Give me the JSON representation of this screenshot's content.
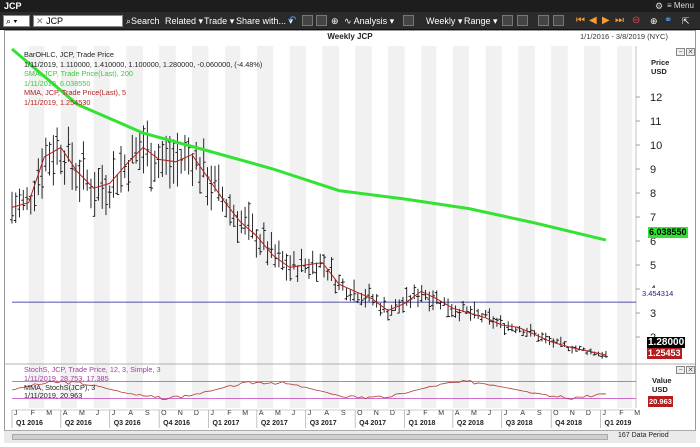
{
  "window": {
    "title": "JCP",
    "menu_label": "Menu"
  },
  "toolbar": {
    "symbol_value": "JCP",
    "search_label": "Search",
    "related_label": "Related",
    "trade_label": "Trade",
    "share_label": "Share with...",
    "analysis_label": "Analysis",
    "weekly_label": "Weekly",
    "range_label": "Range"
  },
  "chart": {
    "title": "Weekly JCP",
    "date_range": "1/1/2016 - 3/8/2019 (NYC)",
    "price_axis_title": "Price",
    "price_axis_unit": "USD",
    "lower_axis_title": "Value",
    "lower_axis_unit": "USD",
    "data_period": "167 Data Period"
  },
  "legend": {
    "ohlc_title": "BarOHLC, JCP, Trade Price",
    "ohlc_values": "1/11/2019, 1.110000, 1.410000, 1.100000, 1.280000, -0.060000, (-4.48%)",
    "sma_title": "SMA, JCP, Trade Price(Last), 200",
    "sma_values": "1/11/2019, 6.038550",
    "mma_title": "MMA, JCP, Trade Price(Last), 5",
    "mma_values": "1/11/2019, 1.254530"
  },
  "legend2": {
    "stoch_title": "StochS, JCP, Trade Price, 12, 3, Simple, 3",
    "stoch_values": "1/11/2019, 28.753, 17.385",
    "mma_title": "MMA, StochS(JCP), 3",
    "mma_values": "1/11/2019, 20.963"
  },
  "badges": {
    "sma": "6.038550",
    "hline": "3.454314",
    "last": "1.28000",
    "mma": "1.25453",
    "stoch": "20.963"
  },
  "colors": {
    "sma": "#33e233",
    "mma": "#b41e1e",
    "bars": "#111111",
    "hline": "#1a1a8c",
    "stoch": "#b33a3a",
    "stoch_band": "#c040c0",
    "accent_orange": "#ff9a2e"
  },
  "chart_data": {
    "type": "line",
    "title": "Weekly JCP",
    "price_ticks": [
      2,
      3,
      4,
      5,
      6,
      7,
      8,
      9,
      10,
      11,
      12
    ],
    "ylim": [
      1,
      13
    ],
    "months": [
      "J",
      "F",
      "M",
      "A",
      "M",
      "J",
      "J",
      "A",
      "S",
      "O",
      "N",
      "D",
      "J",
      "F",
      "M",
      "A",
      "M",
      "J",
      "J",
      "A",
      "S",
      "O",
      "N",
      "D",
      "J",
      "F",
      "M",
      "A",
      "M",
      "J",
      "J",
      "A",
      "S",
      "O",
      "N",
      "D",
      "J",
      "F",
      "M"
    ],
    "quarters": [
      "Q1 2016",
      "Q2 2016",
      "Q3 2016",
      "Q4 2016",
      "Q1 2017",
      "Q2 2017",
      "Q3 2017",
      "Q4 2017",
      "Q1 2018",
      "Q2 2018",
      "Q3 2018",
      "Q4 2018",
      "Q1 2019"
    ],
    "horizontal_line": 3.454314,
    "series": [
      {
        "name": "SMA 200",
        "x": [
          "2016-01-01",
          "2016-05-01",
          "2016-09-01",
          "2017-01-01",
          "2017-05-01",
          "2017-09-01",
          "2018-01-01",
          "2018-05-01",
          "2018-09-01",
          "2019-01-11"
        ],
        "values": [
          14.0,
          11.7,
          10.5,
          9.75,
          9.0,
          8.1,
          7.75,
          7.35,
          6.75,
          6.04
        ]
      },
      {
        "name": "MMA 5",
        "x": [
          "2016-01-01",
          "2016-02-01",
          "2016-03-01",
          "2016-04-01",
          "2016-05-01",
          "2016-06-01",
          "2016-07-01",
          "2016-08-01",
          "2016-09-01",
          "2016-10-01",
          "2016-11-01",
          "2016-12-01",
          "2017-01-01",
          "2017-02-01",
          "2017-03-01",
          "2017-04-01",
          "2017-05-01",
          "2017-06-01",
          "2017-07-01",
          "2017-08-01",
          "2017-09-01",
          "2017-10-01",
          "2017-11-01",
          "2017-12-01",
          "2018-01-01",
          "2018-02-01",
          "2018-03-01",
          "2018-04-01",
          "2018-05-01",
          "2018-06-01",
          "2018-07-01",
          "2018-08-01",
          "2018-09-01",
          "2018-10-01",
          "2018-11-01",
          "2018-12-01",
          "2019-01-11"
        ],
        "values": [
          7.4,
          7.6,
          9.5,
          9.9,
          8.9,
          8.2,
          8.4,
          9.2,
          9.9,
          9.4,
          9.3,
          9.6,
          8.6,
          7.6,
          6.8,
          6.2,
          5.4,
          4.9,
          5.0,
          5.1,
          4.2,
          3.9,
          3.6,
          3.1,
          3.4,
          3.9,
          3.6,
          3.2,
          3.0,
          2.8,
          2.5,
          2.4,
          2.1,
          1.8,
          1.6,
          1.45,
          1.25
        ]
      }
    ],
    "stoch": {
      "name": "StochS",
      "ylim": [
        0,
        100
      ],
      "bands": [
        20,
        80
      ],
      "last": 28.753,
      "signal_last": 17.385,
      "mma_last": 20.963
    }
  }
}
